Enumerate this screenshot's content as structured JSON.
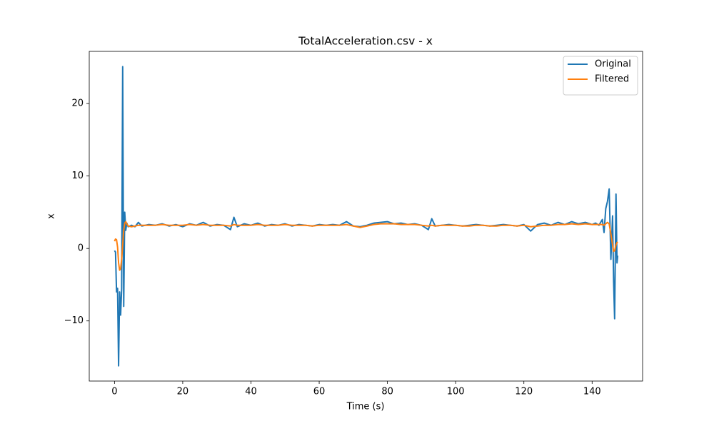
{
  "chart_data": {
    "type": "line",
    "title": "TotalAcceleration.csv - x",
    "x_label": "Time (s)",
    "y_label": "x",
    "x": [
      0,
      0.3,
      0.6,
      0.9,
      1.2,
      1.5,
      1.8,
      2.1,
      2.4,
      2.7,
      3.0,
      3.3,
      3.6,
      4,
      5,
      6,
      7,
      8,
      10,
      12,
      14,
      16,
      18,
      20,
      22,
      24,
      26,
      28,
      30,
      32,
      34,
      35,
      36,
      38,
      40,
      42,
      44,
      46,
      48,
      50,
      52,
      54,
      56,
      58,
      60,
      62,
      64,
      66,
      68,
      70,
      72,
      74,
      76,
      78,
      80,
      82,
      84,
      86,
      88,
      90,
      92,
      93,
      94,
      96,
      98,
      100,
      102,
      104,
      106,
      108,
      110,
      112,
      114,
      116,
      118,
      120,
      122,
      124,
      126,
      128,
      130,
      132,
      134,
      136,
      138,
      140,
      141,
      142,
      143,
      143.5,
      144,
      144.5,
      145,
      145.5,
      146,
      146.3,
      146.6,
      147,
      147.3,
      147.5
    ],
    "series": [
      {
        "name": "Original",
        "color": "#1f77b4",
        "values": [
          -0.3,
          -0.5,
          -6,
          -5.5,
          -16.2,
          -6,
          -9.2,
          -5.5,
          25.1,
          -8,
          5,
          2.5,
          3.5,
          3.0,
          3.2,
          3.0,
          3.6,
          3.1,
          3.3,
          3.2,
          3.4,
          3.1,
          3.3,
          3.0,
          3.4,
          3.2,
          3.6,
          3.1,
          3.3,
          3.2,
          2.6,
          4.3,
          3.0,
          3.4,
          3.2,
          3.5,
          3.1,
          3.3,
          3.2,
          3.4,
          3.1,
          3.3,
          3.2,
          3.1,
          3.3,
          3.2,
          3.3,
          3.2,
          3.7,
          3.1,
          3.0,
          3.2,
          3.5,
          3.6,
          3.7,
          3.4,
          3.5,
          3.3,
          3.4,
          3.2,
          2.6,
          4.1,
          3.1,
          3.2,
          3.3,
          3.2,
          3.1,
          3.2,
          3.3,
          3.2,
          3.1,
          3.2,
          3.3,
          3.2,
          3.1,
          3.3,
          2.4,
          3.3,
          3.5,
          3.2,
          3.6,
          3.3,
          3.7,
          3.4,
          3.6,
          3.3,
          3.5,
          3.2,
          4.0,
          2.2,
          5.5,
          6.5,
          8.2,
          -1.5,
          4.5,
          -4.5,
          -9.7,
          7.5,
          -2,
          -1.0
        ]
      },
      {
        "name": "Filtered",
        "color": "#ff7f0e",
        "values": [
          1.0,
          1.3,
          1.2,
          0.2,
          -2,
          -3,
          -2.8,
          -1.5,
          0.5,
          2.5,
          3.5,
          3.7,
          3.4,
          3.1,
          3.0,
          3.1,
          3.2,
          3.2,
          3.2,
          3.2,
          3.3,
          3.2,
          3.2,
          3.2,
          3.3,
          3.2,
          3.3,
          3.2,
          3.2,
          3.2,
          3.1,
          3.3,
          3.2,
          3.2,
          3.2,
          3.3,
          3.2,
          3.2,
          3.2,
          3.3,
          3.2,
          3.2,
          3.2,
          3.1,
          3.2,
          3.2,
          3.2,
          3.2,
          3.3,
          3.1,
          2.9,
          3.1,
          3.3,
          3.4,
          3.4,
          3.4,
          3.3,
          3.3,
          3.3,
          3.2,
          3.1,
          3.2,
          3.1,
          3.2,
          3.2,
          3.2,
          3.1,
          3.1,
          3.2,
          3.2,
          3.1,
          3.1,
          3.2,
          3.2,
          3.1,
          3.2,
          3.0,
          3.1,
          3.2,
          3.2,
          3.3,
          3.3,
          3.4,
          3.3,
          3.4,
          3.3,
          3.3,
          3.3,
          3.3,
          3.2,
          3.4,
          3.6,
          3.4,
          2.0,
          0.5,
          -0.4,
          -0.3,
          0.5,
          0.8,
          0.9
        ]
      }
    ],
    "xlim": [
      -7.4,
      154.8
    ],
    "ylim": [
      -18.3,
      27.2
    ],
    "xticks": [
      0,
      20,
      40,
      60,
      80,
      100,
      120,
      140
    ],
    "yticks": [
      {
        "value": -10,
        "label": "−10"
      },
      0,
      10,
      20
    ],
    "grid": false,
    "legend": "upper right"
  }
}
